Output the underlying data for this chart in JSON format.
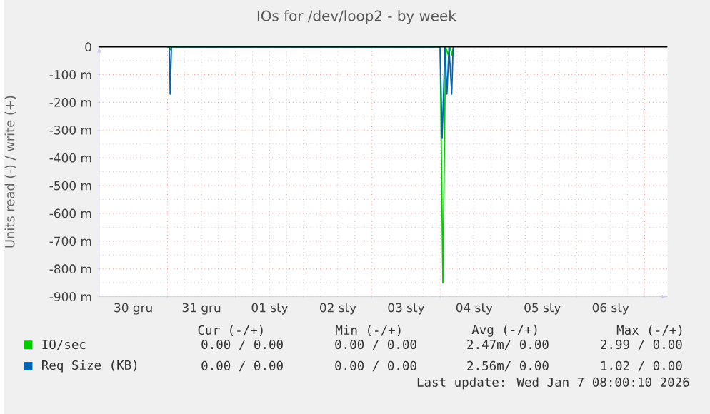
{
  "chart_data": {
    "type": "line",
    "title": "IOs for /dev/loop2 - by week",
    "ylabel": "Units read (-) / write (+)",
    "x": [
      "2025-12-31T00:00",
      "2025-12-31T00:43",
      "2025-12-31T00:58",
      "2025-12-31T01:26",
      "2026-01-04T00:00",
      "2026-01-04T00:58",
      "2026-01-04T01:55",
      "2026-01-04T02:53",
      "2026-01-04T03:36",
      "2026-01-04T04:05",
      "2026-01-04T04:48"
    ],
    "series": [
      {
        "name": "IO/sec",
        "color": "#00cc00",
        "values": [
          0,
          0,
          -10,
          0,
          0,
          -850,
          0,
          -30,
          0,
          -30,
          0
        ]
      },
      {
        "name": "Req Size (KB)",
        "color": "#0066b3",
        "x": [
          "2025-12-31T00:00",
          "2025-12-31T00:43",
          "2025-12-31T00:58",
          "2025-12-31T01:26",
          "2026-01-04T00:00",
          "2026-01-04T00:43",
          "2026-01-04T01:41",
          "2026-01-04T02:24",
          "2026-01-04T03:07",
          "2026-01-04T04:05",
          "2026-01-04T04:34"
        ],
        "values": [
          0,
          0,
          -170,
          0,
          0,
          -330,
          0,
          -170,
          0,
          -170,
          0
        ]
      }
    ],
    "xlim": [
      "2025-12-30T00:00",
      "2026-01-07T08:00"
    ],
    "xticks": [
      {
        "value": "2025-12-30T12:00",
        "label": "30 gru"
      },
      {
        "value": "2025-12-31T12:00",
        "label": "31 gru"
      },
      {
        "value": "2026-01-01T12:00",
        "label": "01 sty"
      },
      {
        "value": "2026-01-02T12:00",
        "label": "02 sty"
      },
      {
        "value": "2026-01-03T12:00",
        "label": "03 sty"
      },
      {
        "value": "2026-01-04T12:00",
        "label": "04 sty"
      },
      {
        "value": "2026-01-05T12:00",
        "label": "05 sty"
      },
      {
        "value": "2026-01-06T12:00",
        "label": "06 sty"
      },
      {
        "value": "2025-12-31T00:00",
        "label": null
      },
      {
        "value": "2026-01-01T00:00",
        "label": null
      },
      {
        "value": "2026-01-02T00:00",
        "label": null
      },
      {
        "value": "2026-01-03T00:00",
        "label": null
      },
      {
        "value": "2026-01-04T00:00",
        "label": null
      },
      {
        "value": "2026-01-05T00:00",
        "label": null
      },
      {
        "value": "2026-01-06T00:00",
        "label": null
      },
      {
        "value": "2026-01-07T00:00",
        "label": null
      }
    ],
    "ylim": [
      -900,
      0
    ],
    "yticks": [
      {
        "value": 0,
        "label": "0"
      },
      {
        "value": -100,
        "label": "-100 m"
      },
      {
        "value": -200,
        "label": "-200 m"
      },
      {
        "value": -300,
        "label": "-300 m"
      },
      {
        "value": -400,
        "label": "-400 m"
      },
      {
        "value": -500,
        "label": "-500 m"
      },
      {
        "value": -600,
        "label": "-600 m"
      },
      {
        "value": -700,
        "label": "-700 m"
      },
      {
        "value": -800,
        "label": "-800 m"
      },
      {
        "value": -900,
        "label": "-900 m"
      }
    ],
    "ref_lines": [
      {
        "axis": "y",
        "value": 0,
        "color": "#000000"
      }
    ],
    "grid": true,
    "legend": "bottom",
    "annotations": [
      "Cur (-/+)",
      "Min (-/+)",
      "Avg (-/+)",
      "Max (-/+)",
      "0.00 / 0.00",
      "0.00 / 0.00",
      "2.47m/ 0.00",
      "2.99 / 0.00",
      "0.00 / 0.00",
      "0.00 / 0.00",
      "2.56m/ 0.00",
      "1.02 / 0.00",
      "Last update: Wed Jan  7 08:00:10 2026"
    ]
  }
}
